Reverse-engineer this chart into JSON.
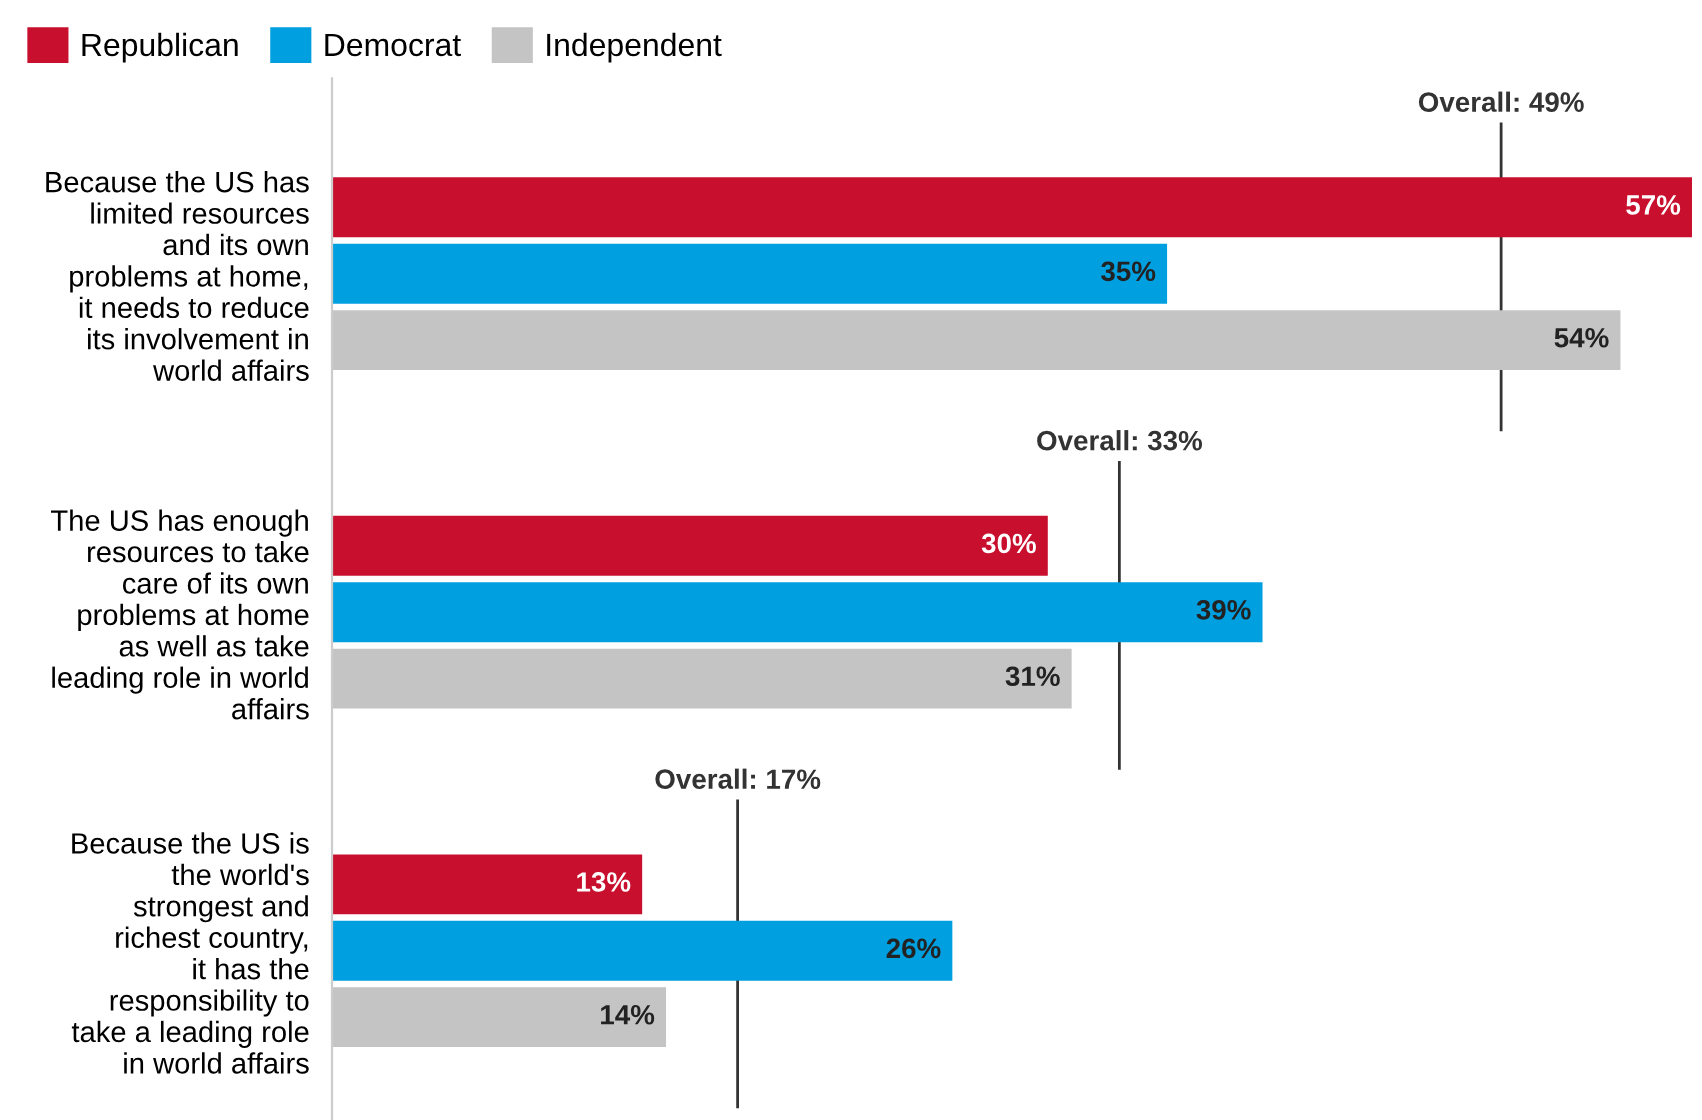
{
  "chart_data": {
    "type": "bar",
    "orientation": "horizontal",
    "tick_labels": "y",
    "legend": "top left",
    "grid": false,
    "categories": [
      "Because the US has\nlimited resources\nand its own\nproblems at home,\nit needs to reduce\nits involvement in\nworld affairs",
      "The US has enough\nresources to take\ncare of its own\nproblems at home\nas well as take\nleading role in world\naffairs",
      "Because the US is\nthe world's\nstrongest and\nrichest country,\nit has the\nresponsibility to\ntake a leading role\nin world affairs"
    ],
    "series": [
      {
        "name": "Republican",
        "color": "#c8102e",
        "values": [
          57,
          30,
          13
        ],
        "value_labels": [
          "57%",
          "30%",
          "13%"
        ]
      },
      {
        "name": "Democrat",
        "color": "#009fdf",
        "values": [
          35,
          39,
          26
        ],
        "value_labels": [
          "35%",
          "39%",
          "26%"
        ]
      },
      {
        "name": "Independent",
        "color": "#c4c4c4",
        "values": [
          54,
          31,
          14
        ],
        "value_labels": [
          "54%",
          "31%",
          "14%"
        ]
      }
    ],
    "ref_lines": [
      {
        "axis": "x",
        "value": 49,
        "label": "Overall: 49%",
        "color": "#333333"
      },
      {
        "axis": "x",
        "value": 33,
        "label": "Overall: 33%",
        "color": "#333333"
      },
      {
        "axis": "x",
        "value": 17,
        "label": "Overall: 17%",
        "color": "#333333"
      }
    ]
  }
}
